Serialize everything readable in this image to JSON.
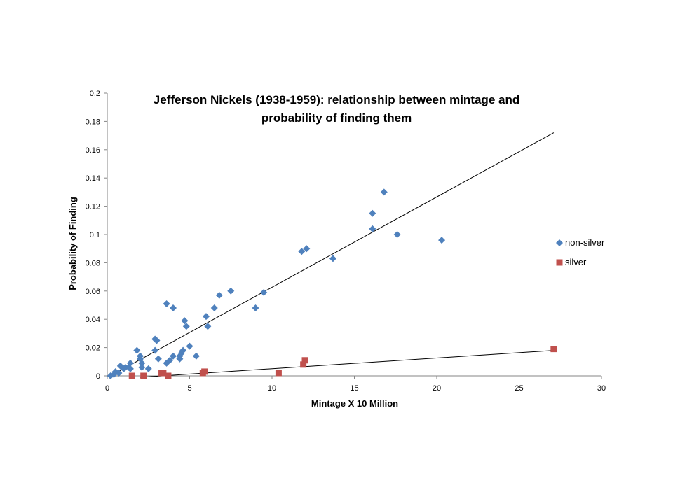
{
  "chart_data": {
    "type": "scatter",
    "title_lines": [
      "Jefferson Nickels (1938-1959): relationship  between mintage and",
      "probability  of finding them"
    ],
    "xlabel": "Mintage X 10 Million",
    "ylabel": "Probability of Finding",
    "xlim": [
      0,
      30
    ],
    "ylim": [
      0,
      0.2
    ],
    "x_ticks": [
      0,
      5,
      10,
      15,
      20,
      25,
      30
    ],
    "y_ticks": [
      0,
      0.02,
      0.04,
      0.06,
      0.08,
      0.1,
      0.12,
      0.14,
      0.16,
      0.18,
      0.2
    ],
    "x_tick_labels": [
      "0",
      "5",
      "10",
      "15",
      "20",
      "25",
      "30"
    ],
    "y_tick_labels": [
      "0",
      "0.02",
      "0.04",
      "0.06",
      "0.08",
      "0.1",
      "0.12",
      "0.14",
      "0.16",
      "0.18",
      "0.2"
    ],
    "grid": false,
    "legend_position": "right",
    "series": [
      {
        "name": "non-silver",
        "marker": "diamond",
        "color": "#4F81BD",
        "points": [
          [
            0.2,
            0.0
          ],
          [
            0.4,
            0.001
          ],
          [
            0.5,
            0.003
          ],
          [
            0.7,
            0.002
          ],
          [
            0.8,
            0.007
          ],
          [
            1.0,
            0.005
          ],
          [
            1.1,
            0.006
          ],
          [
            1.3,
            0.006
          ],
          [
            1.4,
            0.009
          ],
          [
            1.4,
            0.005
          ],
          [
            1.8,
            0.018
          ],
          [
            2.0,
            0.014
          ],
          [
            2.0,
            0.012
          ],
          [
            2.1,
            0.009
          ],
          [
            2.1,
            0.006
          ],
          [
            2.5,
            0.005
          ],
          [
            2.9,
            0.026
          ],
          [
            3.0,
            0.025
          ],
          [
            2.9,
            0.018
          ],
          [
            3.1,
            0.012
          ],
          [
            3.6,
            0.051
          ],
          [
            3.6,
            0.009
          ],
          [
            3.8,
            0.011
          ],
          [
            4.0,
            0.048
          ],
          [
            4.0,
            0.014
          ],
          [
            4.4,
            0.014
          ],
          [
            4.4,
            0.012
          ],
          [
            4.5,
            0.016
          ],
          [
            4.6,
            0.018
          ],
          [
            4.7,
            0.039
          ],
          [
            4.8,
            0.035
          ],
          [
            5.0,
            0.021
          ],
          [
            5.4,
            0.014
          ],
          [
            6.0,
            0.042
          ],
          [
            6.1,
            0.035
          ],
          [
            6.5,
            0.048
          ],
          [
            6.8,
            0.057
          ],
          [
            7.5,
            0.06
          ],
          [
            9.0,
            0.048
          ],
          [
            9.5,
            0.059
          ],
          [
            11.8,
            0.088
          ],
          [
            12.1,
            0.09
          ],
          [
            13.7,
            0.083
          ],
          [
            16.1,
            0.115
          ],
          [
            16.1,
            0.104
          ],
          [
            16.8,
            0.13
          ],
          [
            17.6,
            0.1
          ],
          [
            20.3,
            0.096
          ]
        ],
        "trendline": [
          [
            0.2,
            0.0
          ],
          [
            27.1,
            0.172
          ]
        ]
      },
      {
        "name": "silver",
        "marker": "square",
        "color": "#C0504D",
        "points": [
          [
            1.5,
            0.0
          ],
          [
            2.2,
            0.0
          ],
          [
            3.3,
            0.002
          ],
          [
            3.4,
            0.002
          ],
          [
            3.7,
            0.0
          ],
          [
            5.8,
            0.002
          ],
          [
            5.9,
            0.003
          ],
          [
            10.4,
            0.002
          ],
          [
            11.9,
            0.008
          ],
          [
            12.0,
            0.011
          ],
          [
            27.1,
            0.019
          ]
        ],
        "trendline": [
          [
            2.0,
            -0.001
          ],
          [
            27.1,
            0.018
          ]
        ]
      }
    ]
  }
}
